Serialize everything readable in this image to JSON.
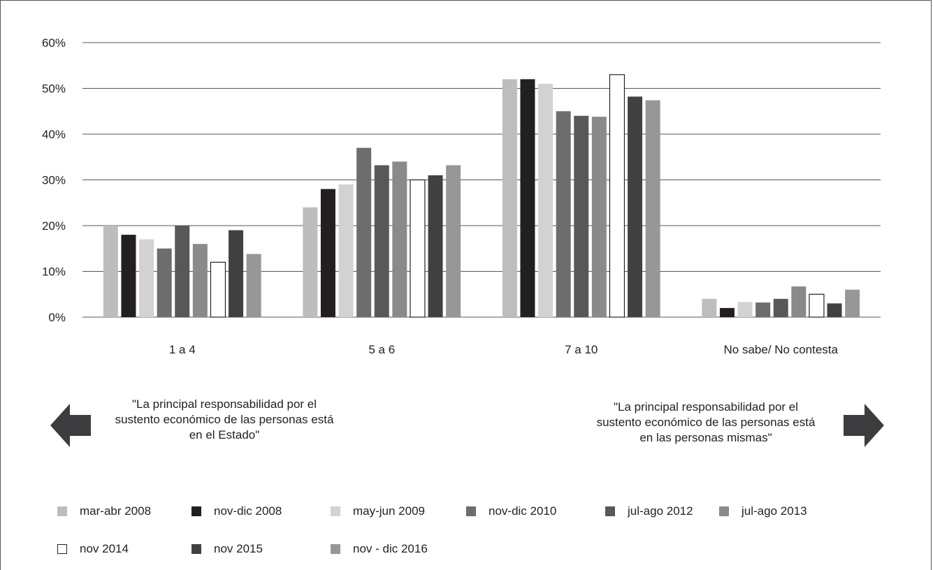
{
  "chart_data": {
    "type": "bar",
    "categories": [
      "1 a 4",
      "5 a 6",
      "7 a 10",
      "No sabe/ No contesta"
    ],
    "ylim": [
      0,
      60
    ],
    "yticks": [
      "0%",
      "10%",
      "20%",
      "30%",
      "40%",
      "50%",
      "60%"
    ],
    "ytick_values": [
      0,
      10,
      20,
      30,
      40,
      50,
      60
    ],
    "grid": true,
    "legend_placement": "bottom",
    "series": [
      {
        "name": "mar-abr 2008",
        "color": "#bdbdbd",
        "values": [
          20,
          24,
          52,
          4
        ]
      },
      {
        "name": "nov-dic 2008",
        "color": "#231f20",
        "values": [
          18,
          28,
          52,
          2
        ]
      },
      {
        "name": "may-jun 2009",
        "color": "#d2d2d2",
        "values": [
          17,
          29,
          51,
          3.3
        ]
      },
      {
        "name": "nov-dic 2010",
        "color": "#6d6d6f",
        "values": [
          15,
          37,
          45,
          3.2
        ]
      },
      {
        "name": "jul-ago 2012",
        "color": "#58585a",
        "values": [
          20,
          33.2,
          44,
          4
        ]
      },
      {
        "name": "jul-ago 2013",
        "color": "#8a8a8c",
        "values": [
          16,
          34,
          43.8,
          6.7
        ]
      },
      {
        "name": "nov 2014",
        "color": "#ffffff",
        "stroke": "#222222",
        "values": [
          12,
          30,
          53,
          5
        ]
      },
      {
        "name": "nov 2015",
        "color": "#414142",
        "values": [
          19,
          31,
          48.2,
          3
        ]
      },
      {
        "name": "nov - dic 2016",
        "color": "#979799",
        "values": [
          13.8,
          33.2,
          47.4,
          6
        ]
      }
    ]
  },
  "notes": {
    "left": "\"La principal responsabilidad por el sustento económico de las personas está en el Estado\"",
    "right": "\"La principal responsabilidad por el sustento económico de las personas está en las personas mismas\""
  },
  "icons": {
    "left_arrow": "left-arrow-icon",
    "right_arrow": "right-arrow-icon",
    "arrow_color": "#3d3d3f"
  }
}
